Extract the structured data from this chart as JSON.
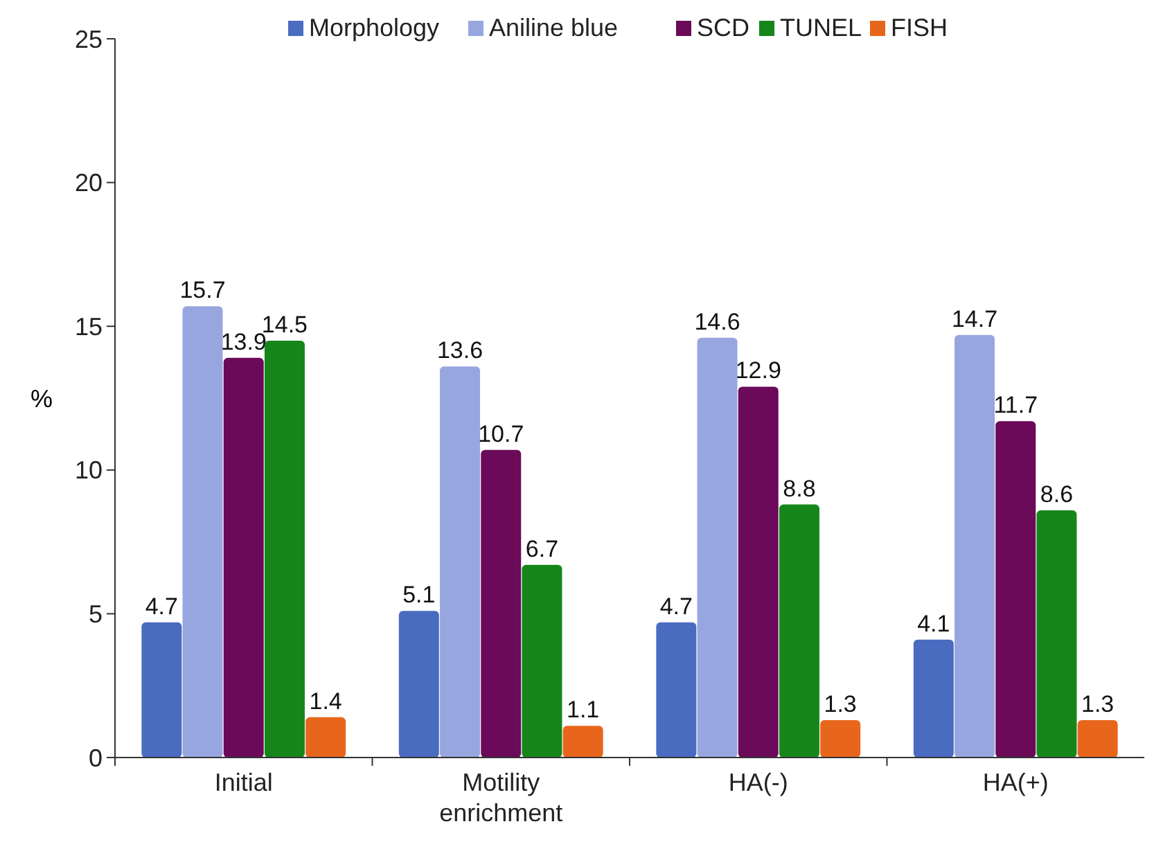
{
  "chart_data": {
    "type": "bar",
    "ylabel": "%",
    "categories": [
      "Initial",
      "Motility enrichment",
      "HA(-)",
      "HA(+)"
    ],
    "series": [
      {
        "name": "Morphology",
        "color": "#4a6cc0",
        "values": [
          4.7,
          5.1,
          4.7,
          4.1
        ]
      },
      {
        "name": "Aniline blue",
        "color": "#98a6e0",
        "values": [
          15.7,
          13.6,
          14.6,
          14.7
        ]
      },
      {
        "name": "SCD",
        "color": "#6a0a58",
        "values": [
          13.9,
          10.7,
          12.9,
          11.7
        ]
      },
      {
        "name": "TUNEL",
        "color": "#16861a",
        "values": [
          14.5,
          6.7,
          8.8,
          8.6
        ]
      },
      {
        "name": "FISH",
        "color": "#e8661c",
        "values": [
          1.4,
          1.1,
          1.3,
          1.3
        ]
      }
    ],
    "ylim": [
      0,
      25
    ],
    "yticks": [
      0,
      5,
      10,
      15,
      20,
      25
    ],
    "data_labels": true,
    "grid": false,
    "legend": "top"
  }
}
